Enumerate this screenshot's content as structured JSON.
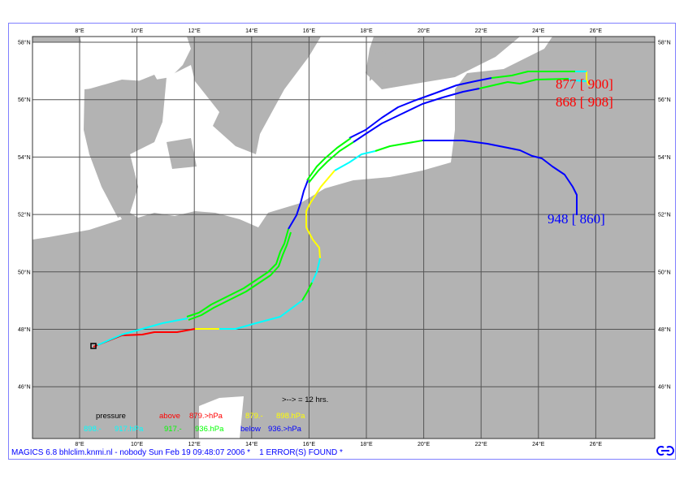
{
  "map": {
    "lon_labels": [
      "8°E",
      "10°E",
      "12°E",
      "14°E",
      "16°E",
      "18°E",
      "20°E",
      "22°E",
      "24°E",
      "26°E"
    ],
    "lat_labels": [
      "58°N",
      "56°N",
      "54°N",
      "52°N",
      "50°N",
      "48°N",
      "46°N"
    ],
    "colors": {
      "land": "#b3b3b3",
      "sea": "#ffffff",
      "grid": "#555555",
      "above": "#ff0000",
      "p879_898": "#ffff00",
      "p898_917": "#00ffff",
      "p917_936": "#00ff00",
      "below": "#0000ff"
    },
    "track_labels": [
      {
        "text": "877 [ 900]",
        "color": "#ff0000"
      },
      {
        "text": "868 [ 908]",
        "color": "#ff0000"
      },
      {
        "text": "948 [ 860]",
        "color": "#0000ff"
      }
    ]
  },
  "legend": {
    "time_step": ">--> = 12 hrs.",
    "title": "pressure",
    "above": "above",
    "above_val": "879.>hPa",
    "y_lo": "879.-",
    "y_hi": "898.hPa",
    "c_lo": "898.-",
    "c_hi": "917.hPa",
    "g_lo": "917.-",
    "g_hi": "936.hPa",
    "below": "below",
    "below_val": "936.>hPa"
  },
  "footer": "MAGICS 6.8 bhlclim.knmi.nl - nobody Sun Feb 19 09:48:07 2006 *    1 ERROR(S) FOUND *"
}
